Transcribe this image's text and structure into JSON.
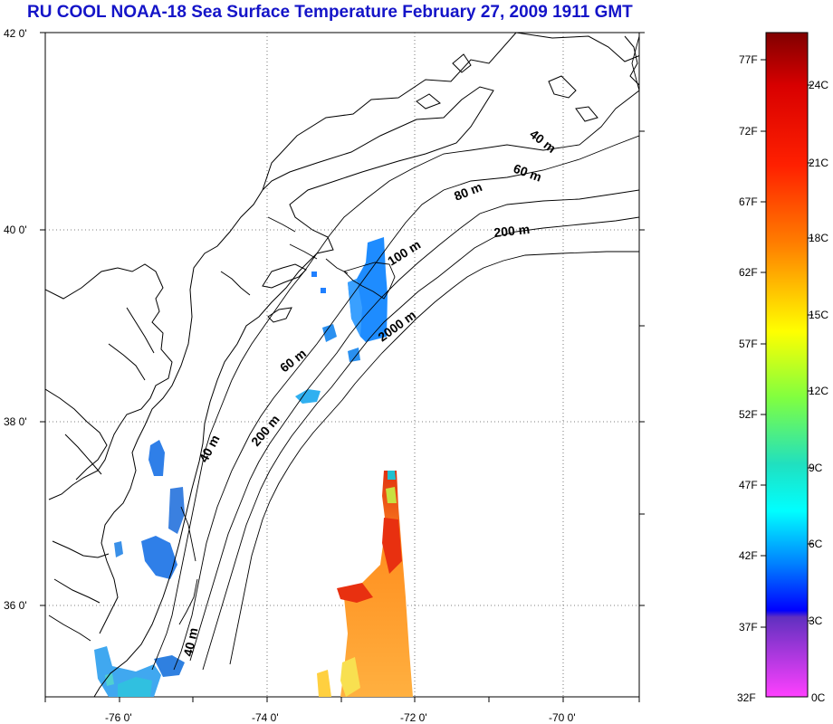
{
  "title": "RU COOL  NOAA-18 Sea Surface Temperature February 27, 2009 1911 GMT",
  "map": {
    "lat_labels": [
      "42 0'",
      "40 0'",
      "38 0'",
      "36 0'"
    ],
    "lon_labels": [
      "-76 0'",
      "-74 0'",
      "-72 0'",
      "-70 0'"
    ],
    "isobath_labels": [
      "40 m",
      "60 m",
      "80 m",
      "200 m",
      "100 m",
      "2000 m",
      "60 m",
      "200 m",
      "40 m",
      "40 m"
    ]
  },
  "colorbar": {
    "f_labels": [
      "77F",
      "72F",
      "67F",
      "62F",
      "57F",
      "52F",
      "47F",
      "42F",
      "37F",
      "32F"
    ],
    "c_labels": [
      "24C",
      "21C",
      "18C",
      "15C",
      "12C",
      "9C",
      "6C",
      "3C",
      "0C"
    ],
    "colors": [
      "#800000",
      "#ff0000",
      "#ff8000",
      "#ffff00",
      "#80ff00",
      "#00ff80",
      "#00ffff",
      "#0080ff",
      "#0000ff",
      "#8040c0",
      "#ff40ff"
    ]
  }
}
